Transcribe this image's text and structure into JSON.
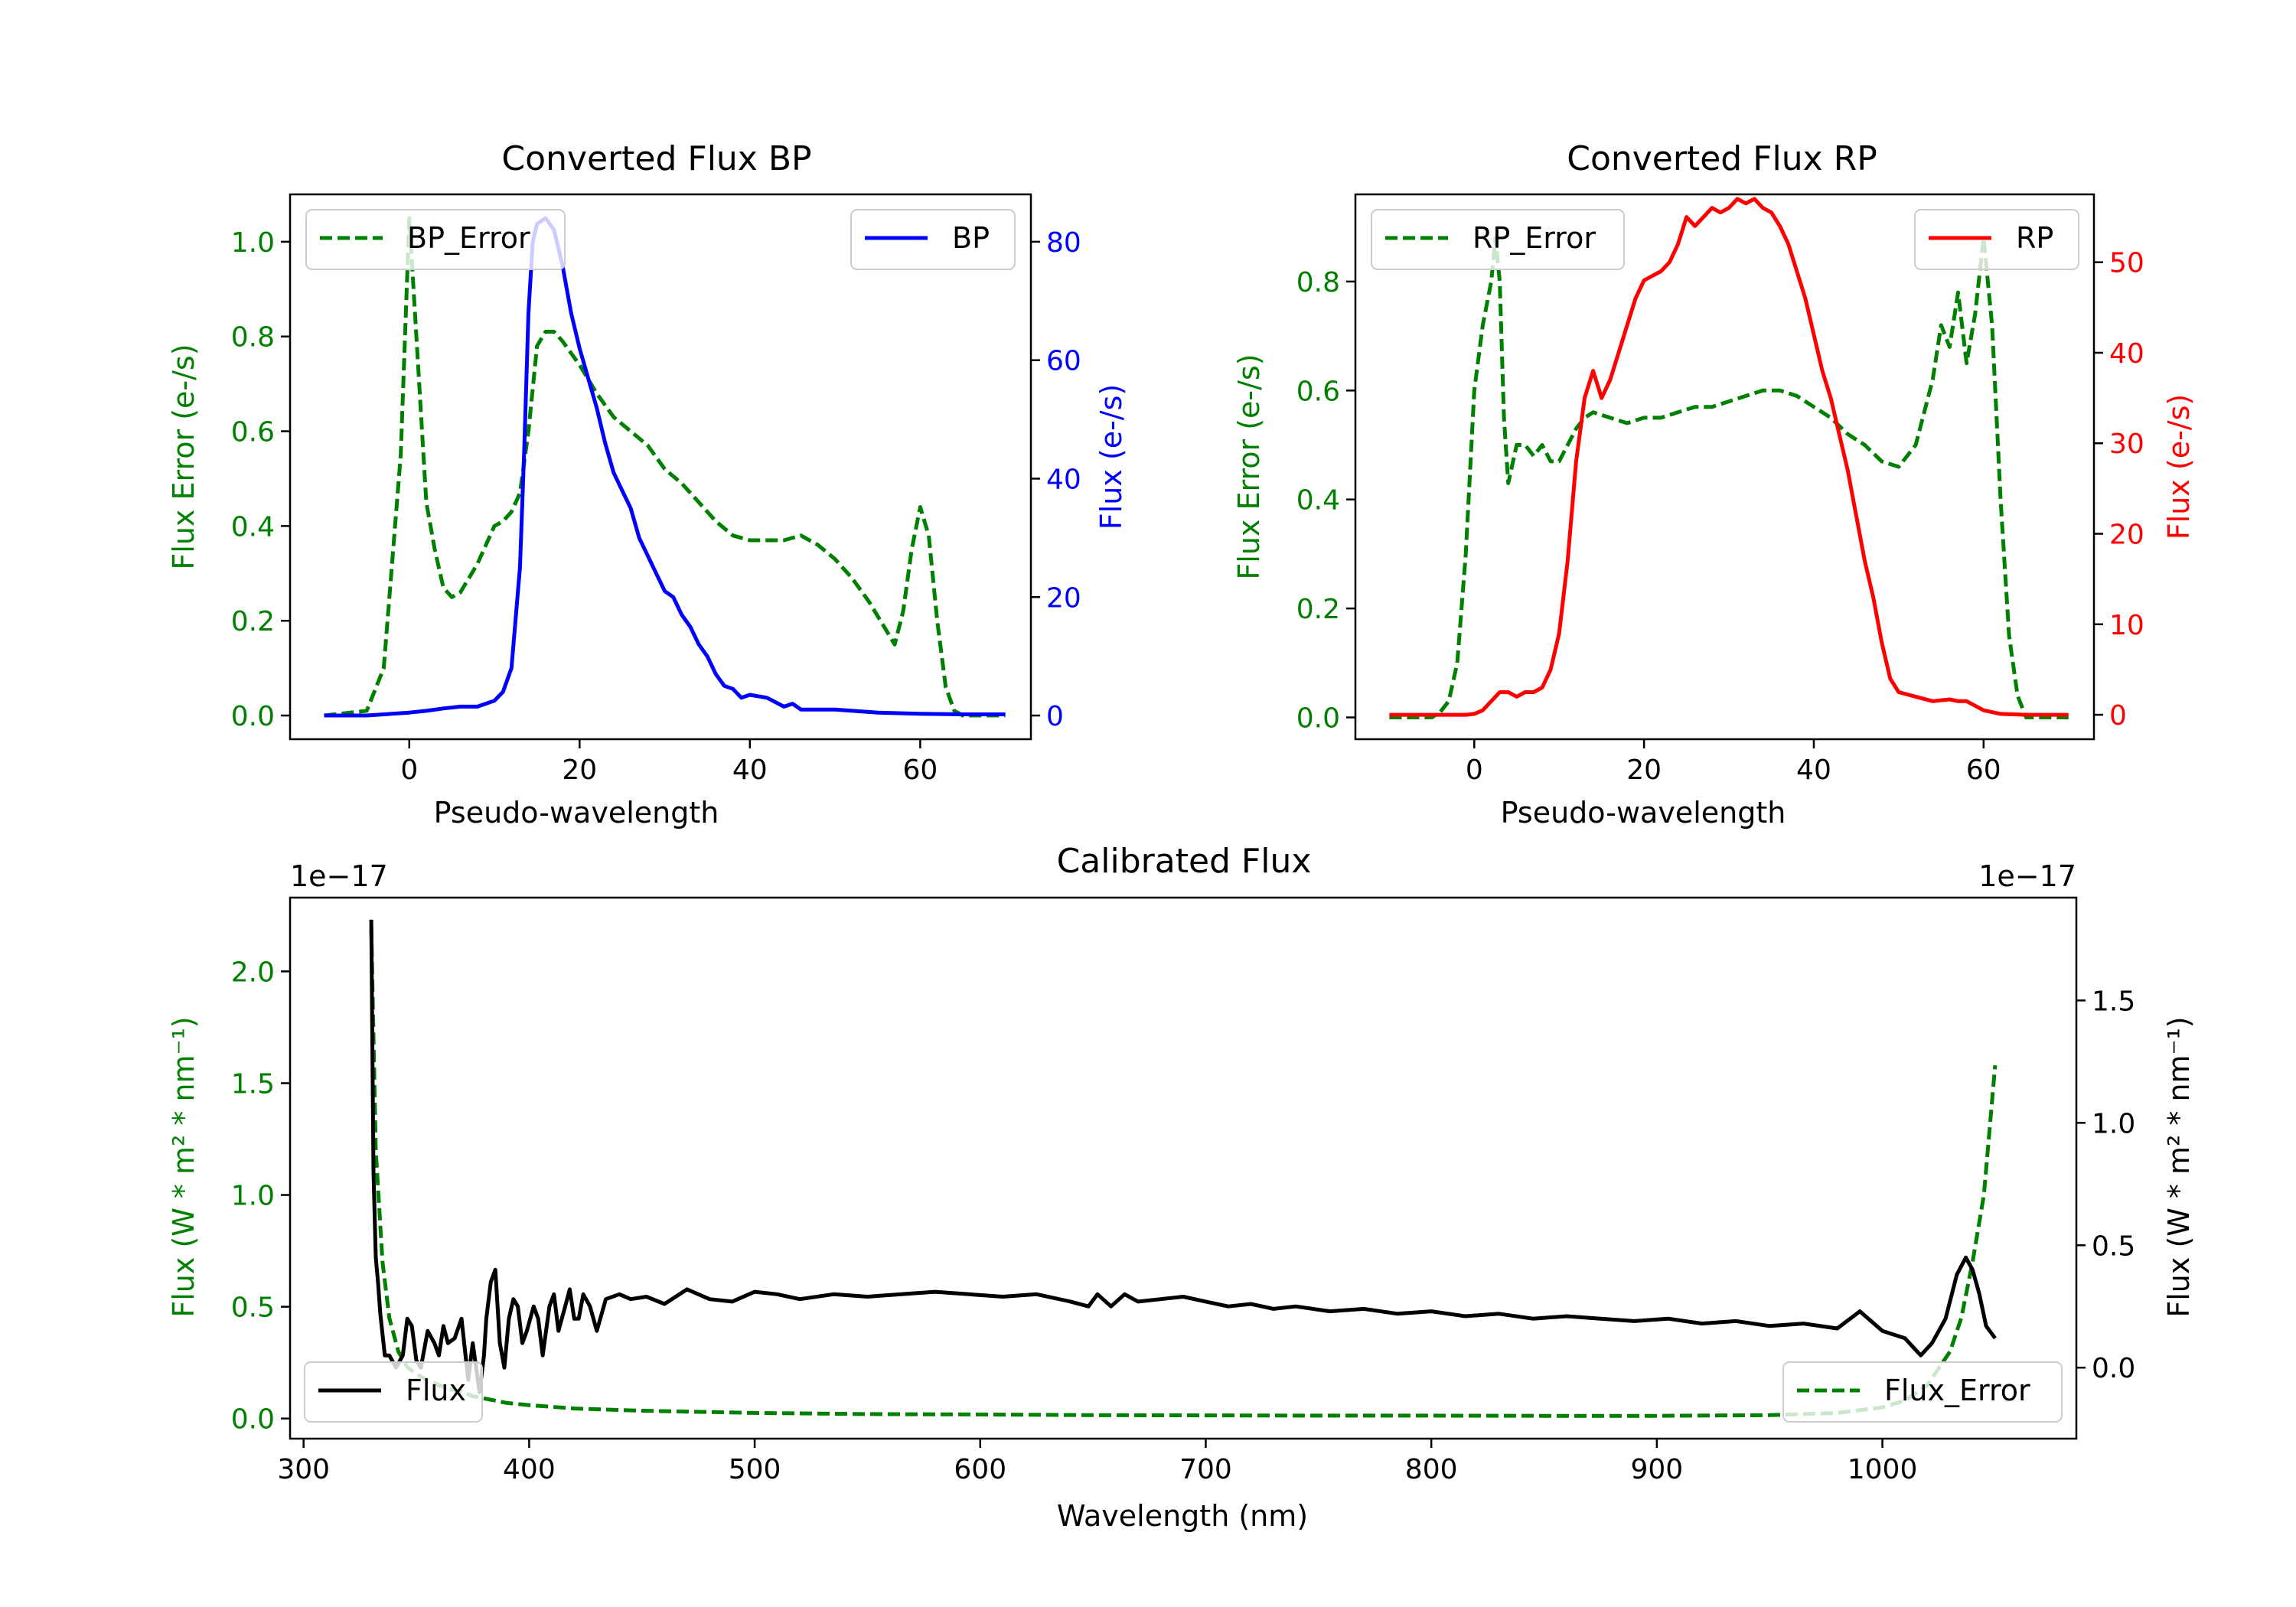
{
  "chart_data": [
    {
      "id": "bp",
      "type": "line",
      "title": "Converted Flux BP",
      "xlabel": "Pseudo-wavelength",
      "ylabel": "Flux Error (e-/s)",
      "y2label": "Flux (e-/s)",
      "xlim": [
        -14,
        73
      ],
      "ylim": [
        -0.05,
        1.1
      ],
      "y2lim": [
        -4,
        88
      ],
      "xticks": [
        0,
        20,
        40,
        60
      ],
      "yticks": [
        0.0,
        0.2,
        0.4,
        0.6,
        0.8,
        1.0
      ],
      "y2ticks": [
        0,
        20,
        40,
        60,
        80
      ],
      "colors": {
        "left_axis": "#008000",
        "right_axis": "#0000ff"
      },
      "legend_left": "top-left",
      "legend_right": "top-right",
      "series": [
        {
          "name": "BP_Error",
          "axis": "left",
          "color": "#008000",
          "dash": true,
          "label": "BP_Error",
          "x": [
            -10,
            -5,
            -3,
            -1,
            0,
            1,
            2,
            3,
            4,
            5,
            6,
            8,
            9,
            10,
            11,
            12,
            13,
            14,
            15,
            16,
            17,
            18,
            20,
            22,
            24,
            26,
            28,
            30,
            32,
            34,
            36,
            38,
            40,
            42,
            44,
            46,
            48,
            50,
            52,
            54,
            56,
            57,
            58,
            59,
            60,
            61,
            62,
            63,
            64,
            65,
            70
          ],
          "y": [
            0.0,
            0.01,
            0.1,
            0.55,
            1.05,
            0.75,
            0.45,
            0.35,
            0.27,
            0.25,
            0.26,
            0.32,
            0.36,
            0.4,
            0.41,
            0.43,
            0.47,
            0.6,
            0.78,
            0.81,
            0.81,
            0.79,
            0.74,
            0.68,
            0.63,
            0.6,
            0.57,
            0.52,
            0.49,
            0.45,
            0.41,
            0.38,
            0.37,
            0.37,
            0.37,
            0.38,
            0.36,
            0.33,
            0.29,
            0.24,
            0.18,
            0.15,
            0.22,
            0.35,
            0.44,
            0.38,
            0.2,
            0.06,
            0.01,
            0.0,
            0.0
          ]
        },
        {
          "name": "BP",
          "axis": "right",
          "color": "#0000ff",
          "dash": false,
          "label": "BP",
          "x": [
            -10,
            -5,
            0,
            2,
            4,
            6,
            8,
            10,
            11,
            12,
            13,
            13.5,
            14,
            14.5,
            15,
            16,
            17,
            18,
            19,
            20,
            21,
            22,
            23,
            24,
            25,
            26,
            27,
            28,
            29,
            30,
            31,
            32,
            33,
            34,
            35,
            36,
            37,
            38,
            39,
            40,
            42,
            44,
            45,
            46,
            48,
            50,
            55,
            60,
            65,
            70
          ],
          "y": [
            0,
            0,
            0.5,
            0.8,
            1.2,
            1.5,
            1.5,
            2.5,
            4,
            8,
            25,
            45,
            68,
            80,
            83,
            84,
            82,
            76,
            68,
            62,
            57,
            52,
            46,
            41,
            38,
            35,
            30,
            27,
            24,
            21,
            20,
            17,
            15,
            12,
            10,
            7,
            5,
            4.5,
            3,
            3.5,
            3,
            1.5,
            2,
            1,
            1,
            1,
            0.5,
            0.3,
            0.2,
            0.2
          ]
        }
      ]
    },
    {
      "id": "rp",
      "type": "line",
      "title": "Converted Flux RP",
      "xlabel": "Pseudo-wavelength",
      "ylabel": "Flux Error (e-/s)",
      "y2label": "Flux (e-/s)",
      "xlim": [
        -14,
        73
      ],
      "ylim": [
        -0.04,
        0.96
      ],
      "y2lim": [
        -2.7,
        57.5
      ],
      "xticks": [
        0,
        20,
        40,
        60
      ],
      "yticks": [
        0.0,
        0.2,
        0.4,
        0.6,
        0.8
      ],
      "y2ticks": [
        0,
        10,
        20,
        30,
        40,
        50
      ],
      "colors": {
        "left_axis": "#008000",
        "right_axis": "#ff0000"
      },
      "legend_left": "top-left",
      "legend_right": "top-right",
      "series": [
        {
          "name": "RP_Error",
          "axis": "left",
          "color": "#008000",
          "dash": true,
          "label": "RP_Error",
          "x": [
            -10,
            -5,
            -4,
            -3,
            -2,
            -1,
            0,
            1,
            2,
            2.5,
            3,
            3.5,
            4,
            5,
            6,
            7,
            8,
            9,
            10,
            11,
            12,
            13,
            14,
            16,
            18,
            20,
            22,
            24,
            26,
            28,
            30,
            32,
            34,
            36,
            38,
            40,
            42,
            44,
            46,
            48,
            50,
            52,
            53,
            54,
            55,
            56,
            57,
            58,
            59,
            60,
            61,
            62,
            63,
            64,
            65,
            70
          ],
          "y": [
            0.0,
            0.0,
            0.01,
            0.03,
            0.1,
            0.3,
            0.6,
            0.72,
            0.8,
            0.88,
            0.8,
            0.55,
            0.43,
            0.5,
            0.5,
            0.48,
            0.5,
            0.47,
            0.47,
            0.5,
            0.53,
            0.55,
            0.56,
            0.55,
            0.54,
            0.55,
            0.55,
            0.56,
            0.57,
            0.57,
            0.58,
            0.59,
            0.6,
            0.6,
            0.59,
            0.57,
            0.55,
            0.52,
            0.5,
            0.47,
            0.46,
            0.5,
            0.56,
            0.62,
            0.72,
            0.68,
            0.78,
            0.65,
            0.74,
            0.88,
            0.72,
            0.4,
            0.15,
            0.04,
            0.0,
            0.0
          ]
        },
        {
          "name": "RP",
          "axis": "right",
          "color": "#ff0000",
          "dash": false,
          "label": "RP",
          "x": [
            -10,
            -5,
            -1,
            0,
            1,
            2,
            3,
            4,
            5,
            6,
            7,
            8,
            9,
            10,
            11,
            12,
            13,
            14,
            15,
            16,
            17,
            18,
            19,
            20,
            21,
            22,
            23,
            24,
            25,
            26,
            27,
            28,
            29,
            30,
            31,
            32,
            33,
            34,
            35,
            36,
            37,
            38,
            39,
            40,
            41,
            42,
            43,
            44,
            45,
            46,
            47,
            48,
            49,
            50,
            52,
            54,
            56,
            57,
            58,
            60,
            62,
            65,
            70
          ],
          "y": [
            0,
            0,
            0,
            0.1,
            0.5,
            1.5,
            2.5,
            2.5,
            2,
            2.5,
            2.5,
            3,
            5,
            9,
            17,
            28,
            35,
            38,
            35,
            37,
            40,
            43,
            46,
            48,
            48.5,
            49,
            50,
            52,
            55,
            54,
            55,
            56,
            55.5,
            56,
            57,
            56.5,
            57,
            56,
            55.5,
            54,
            52,
            49,
            46,
            42,
            38,
            35,
            31,
            27,
            22,
            17,
            13,
            8,
            4,
            2.5,
            2,
            1.5,
            1.7,
            1.5,
            1.5,
            0.5,
            0.1,
            0,
            0
          ]
        }
      ]
    },
    {
      "id": "cal",
      "type": "line",
      "title": "Calibrated Flux",
      "xlabel": "Wavelength (nm)",
      "ylabel": "Flux (W * m$^2$ * nm$^{-1}$)",
      "ylabel_text": "Flux (W * m² * nm⁻¹)",
      "y2label_text": "Flux (W * m² * nm⁻¹)",
      "offset_left": "1e−17",
      "offset_right": "1e−17",
      "xlim": [
        294,
        1086
      ],
      "ylim": [
        -0.09,
        2.33
      ],
      "y2lim": [
        -0.29,
        1.92
      ],
      "xticks": [
        300,
        400,
        500,
        600,
        700,
        800,
        900,
        1000
      ],
      "yticks": [
        0.0,
        0.5,
        1.0,
        1.5,
        2.0
      ],
      "y2ticks": [
        0.0,
        0.5,
        1.0,
        1.5
      ],
      "colors": {
        "left_axis": "#008000",
        "right_axis": "#000000"
      },
      "legend_left": "bottom-left",
      "legend_right": "bottom-right",
      "series": [
        {
          "name": "Flux_Error",
          "axis": "left",
          "color": "#008000",
          "dash": true,
          "label": "Flux_Error",
          "x": [
            330,
            332,
            335,
            338,
            342,
            346,
            350,
            355,
            360,
            365,
            370,
            375,
            380,
            385,
            390,
            400,
            420,
            450,
            500,
            550,
            600,
            650,
            700,
            750,
            800,
            850,
            900,
            950,
            980,
            1000,
            1010,
            1020,
            1030,
            1035,
            1040,
            1045,
            1050
          ],
          "y": [
            2.2,
            1.2,
            0.7,
            0.45,
            0.3,
            0.23,
            0.2,
            0.17,
            0.15,
            0.13,
            0.12,
            0.1,
            0.09,
            0.08,
            0.07,
            0.06,
            0.045,
            0.035,
            0.025,
            0.02,
            0.018,
            0.015,
            0.014,
            0.013,
            0.013,
            0.012,
            0.012,
            0.015,
            0.025,
            0.05,
            0.08,
            0.15,
            0.3,
            0.45,
            0.7,
            1.0,
            1.58
          ]
        },
        {
          "name": "Flux",
          "axis": "right",
          "color": "#000000",
          "dash": false,
          "label": "Flux",
          "x": [
            330,
            331,
            332,
            333,
            334,
            336,
            338,
            341,
            344,
            346,
            348,
            350,
            352,
            355,
            358,
            360,
            362,
            364,
            367,
            370,
            373,
            375,
            378,
            380,
            381,
            383,
            385,
            387,
            389,
            391,
            393,
            395,
            397,
            399,
            402,
            404,
            406,
            409,
            411,
            413,
            416,
            418,
            420,
            422,
            424,
            427,
            430,
            434,
            440,
            445,
            452,
            460,
            470,
            480,
            490,
            500,
            510,
            520,
            535,
            550,
            565,
            580,
            595,
            610,
            625,
            640,
            648,
            652,
            658,
            664,
            670,
            680,
            690,
            700,
            710,
            720,
            730,
            740,
            755,
            770,
            785,
            800,
            815,
            830,
            845,
            860,
            875,
            890,
            905,
            920,
            935,
            950,
            965,
            980,
            990,
            1000,
            1010,
            1017,
            1022,
            1028,
            1033,
            1037,
            1040,
            1043,
            1046,
            1050
          ],
          "y": [
            1.83,
            0.8,
            0.45,
            0.35,
            0.22,
            0.05,
            0.05,
            0.0,
            0.05,
            0.2,
            0.17,
            0.03,
            0.0,
            0.15,
            0.1,
            0.05,
            0.17,
            0.1,
            0.12,
            0.2,
            -0.05,
            0.1,
            -0.1,
            0.05,
            0.2,
            0.35,
            0.4,
            0.1,
            0.0,
            0.2,
            0.28,
            0.25,
            0.1,
            0.15,
            0.25,
            0.2,
            0.05,
            0.25,
            0.3,
            0.15,
            0.25,
            0.32,
            0.2,
            0.2,
            0.3,
            0.25,
            0.15,
            0.28,
            0.3,
            0.28,
            0.29,
            0.26,
            0.32,
            0.28,
            0.27,
            0.31,
            0.3,
            0.28,
            0.3,
            0.29,
            0.3,
            0.31,
            0.3,
            0.29,
            0.3,
            0.27,
            0.25,
            0.3,
            0.25,
            0.3,
            0.27,
            0.28,
            0.29,
            0.27,
            0.25,
            0.26,
            0.24,
            0.25,
            0.23,
            0.24,
            0.22,
            0.23,
            0.21,
            0.22,
            0.2,
            0.21,
            0.2,
            0.19,
            0.2,
            0.18,
            0.19,
            0.17,
            0.18,
            0.16,
            0.23,
            0.15,
            0.12,
            0.05,
            0.1,
            0.2,
            0.38,
            0.45,
            0.4,
            0.3,
            0.17,
            0.12
          ]
        }
      ]
    }
  ]
}
